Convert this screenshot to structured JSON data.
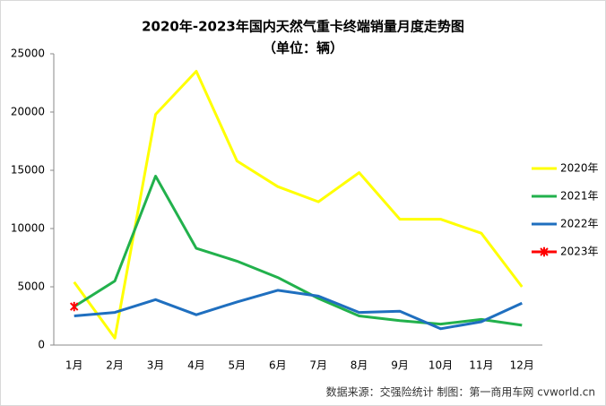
{
  "chart_data": {
    "type": "line",
    "title": "2020年-2023年国内天然气重卡终端销量月度走势图",
    "subtitle": "（单位：辆）",
    "source": "数据来源：交强险统计   制图：第一商用车网 cvworld.cn",
    "categories": [
      "1月",
      "2月",
      "3月",
      "4月",
      "5月",
      "6月",
      "7月",
      "8月",
      "9月",
      "10月",
      "11月",
      "12月"
    ],
    "series": [
      {
        "name": "2020年",
        "color": "#ffff00",
        "values": [
          5400,
          600,
          19800,
          23500,
          15800,
          13600,
          12300,
          14800,
          10800,
          10800,
          9600,
          5000
        ]
      },
      {
        "name": "2021年",
        "color": "#22b14c",
        "values": [
          3300,
          5500,
          14500,
          8300,
          7200,
          5800,
          4000,
          2500,
          2100,
          1800,
          2200,
          1700
        ]
      },
      {
        "name": "2022年",
        "color": "#1f6fbf",
        "values": [
          2500,
          2800,
          3900,
          2600,
          3700,
          4700,
          4200,
          2800,
          2900,
          1400,
          2000,
          3600
        ]
      },
      {
        "name": "2023年",
        "color": "#ff0000",
        "marker": "star",
        "values": [
          3300,
          null,
          null,
          null,
          null,
          null,
          null,
          null,
          null,
          null,
          null,
          null
        ]
      }
    ],
    "ylim": [
      0,
      25000
    ],
    "yticks": [
      0,
      5000,
      10000,
      15000,
      20000,
      25000
    ],
    "grid": false,
    "legend": "right"
  }
}
